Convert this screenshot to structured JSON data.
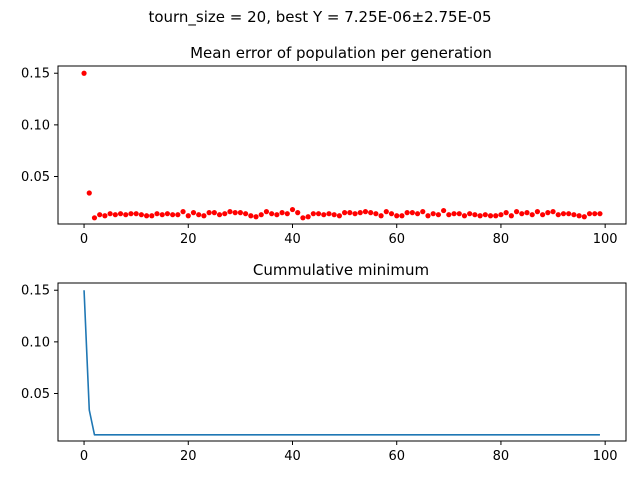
{
  "figure": {
    "suptitle": "tourn_size = 20, best Y = 7.25E-06±2.75E-05"
  },
  "chart_data": [
    {
      "type": "scatter",
      "title": "Mean error of population per generation",
      "xlabel": "",
      "ylabel": "",
      "xlim": [
        -5,
        104
      ],
      "ylim": [
        0.004,
        0.157
      ],
      "xticks": [
        0,
        20,
        40,
        60,
        80,
        100
      ],
      "yticks": [
        0.05,
        0.1,
        0.15
      ],
      "xtick_labels": [
        "0",
        "20",
        "40",
        "60",
        "80",
        "100"
      ],
      "ytick_labels": [
        "0.05",
        "0.10",
        "0.15"
      ],
      "grid": false,
      "marker_color": "#ff0000",
      "x": [
        0,
        1,
        2,
        3,
        4,
        5,
        6,
        7,
        8,
        9,
        10,
        11,
        12,
        13,
        14,
        15,
        16,
        17,
        18,
        19,
        20,
        21,
        22,
        23,
        24,
        25,
        26,
        27,
        28,
        29,
        30,
        31,
        32,
        33,
        34,
        35,
        36,
        37,
        38,
        39,
        40,
        41,
        42,
        43,
        44,
        45,
        46,
        47,
        48,
        49,
        50,
        51,
        52,
        53,
        54,
        55,
        56,
        57,
        58,
        59,
        60,
        61,
        62,
        63,
        64,
        65,
        66,
        67,
        68,
        69,
        70,
        71,
        72,
        73,
        74,
        75,
        76,
        77,
        78,
        79,
        80,
        81,
        82,
        83,
        84,
        85,
        86,
        87,
        88,
        89,
        90,
        91,
        92,
        93,
        94,
        95,
        96,
        97,
        98,
        99
      ],
      "y": [
        0.15,
        0.034,
        0.01,
        0.013,
        0.012,
        0.014,
        0.013,
        0.014,
        0.013,
        0.014,
        0.014,
        0.013,
        0.012,
        0.012,
        0.014,
        0.013,
        0.014,
        0.013,
        0.013,
        0.016,
        0.012,
        0.015,
        0.013,
        0.012,
        0.015,
        0.015,
        0.013,
        0.014,
        0.016,
        0.015,
        0.015,
        0.014,
        0.012,
        0.011,
        0.013,
        0.016,
        0.014,
        0.013,
        0.015,
        0.014,
        0.018,
        0.015,
        0.01,
        0.011,
        0.014,
        0.014,
        0.013,
        0.014,
        0.013,
        0.012,
        0.015,
        0.015,
        0.014,
        0.015,
        0.016,
        0.015,
        0.014,
        0.012,
        0.016,
        0.014,
        0.012,
        0.012,
        0.015,
        0.015,
        0.014,
        0.016,
        0.012,
        0.014,
        0.013,
        0.017,
        0.013,
        0.014,
        0.014,
        0.012,
        0.014,
        0.013,
        0.012,
        0.013,
        0.012,
        0.012,
        0.013,
        0.015,
        0.012,
        0.016,
        0.014,
        0.015,
        0.013,
        0.016,
        0.013,
        0.015,
        0.016,
        0.013,
        0.014,
        0.014,
        0.013,
        0.012,
        0.011,
        0.014,
        0.014,
        0.014
      ]
    },
    {
      "type": "line",
      "title": "Cummulative minimum",
      "xlabel": "",
      "ylabel": "",
      "xlim": [
        -5,
        104
      ],
      "ylim": [
        0.004,
        0.157
      ],
      "xticks": [
        0,
        20,
        40,
        60,
        80,
        100
      ],
      "yticks": [
        0.05,
        0.1,
        0.15
      ],
      "xtick_labels": [
        "0",
        "20",
        "40",
        "60",
        "80",
        "100"
      ],
      "ytick_labels": [
        "0.05",
        "0.10",
        "0.15"
      ],
      "grid": false,
      "line_color": "#1f77b4",
      "x": [
        0,
        1,
        2,
        99
      ],
      "y": [
        0.15,
        0.034,
        0.01,
        0.01
      ]
    }
  ]
}
